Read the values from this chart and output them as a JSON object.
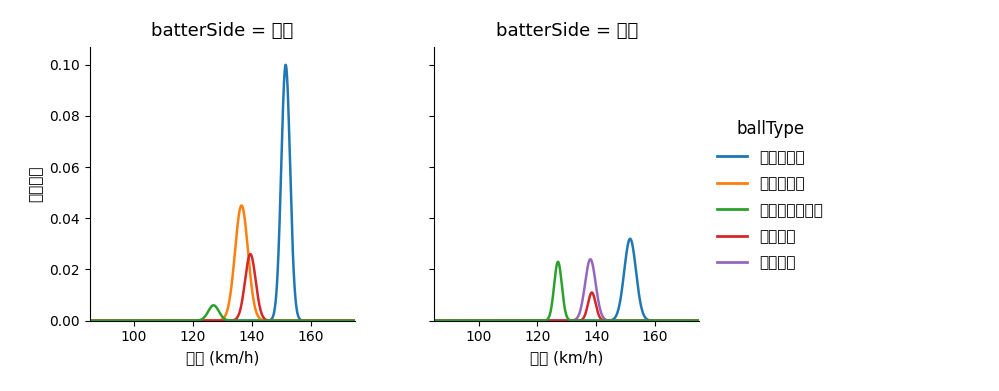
{
  "title_right": "batterSide = 右打",
  "title_left": "batterSide = 左打",
  "ylabel": "確率密度",
  "xlabel": "球速 (km/h)",
  "legend_title": "ballType",
  "legend_labels": [
    "ストレート",
    "スライダー",
    "ナックルカーブ",
    "フォーク",
    "シンカー"
  ],
  "colors": [
    "#1f77b4",
    "#ff7f0e",
    "#2ca02c",
    "#d62728",
    "#9467bd"
  ],
  "xlim": [
    85,
    175
  ],
  "ylim": [
    0.0,
    0.107
  ],
  "yticks": [
    0.0,
    0.02,
    0.04,
    0.06,
    0.08,
    0.1
  ],
  "xticks": [
    100,
    120,
    140,
    160
  ],
  "right_curves": [
    {
      "mean": 151.5,
      "std": 1.5,
      "peak": 0.1,
      "color_idx": 0
    },
    {
      "mean": 136.5,
      "std": 2.2,
      "peak": 0.045,
      "color_idx": 1
    },
    {
      "mean": 139.5,
      "std": 1.8,
      "peak": 0.026,
      "color_idx": 3
    },
    {
      "mean": 127.0,
      "std": 1.8,
      "peak": 0.006,
      "color_idx": 2
    }
  ],
  "left_curves": [
    {
      "mean": 151.5,
      "std": 2.0,
      "peak": 0.032,
      "color_idx": 0
    },
    {
      "mean": 138.0,
      "std": 1.8,
      "peak": 0.024,
      "color_idx": 4
    },
    {
      "mean": 138.5,
      "std": 1.3,
      "peak": 0.011,
      "color_idx": 3
    },
    {
      "mean": 127.0,
      "std": 1.3,
      "peak": 0.023,
      "color_idx": 2
    }
  ]
}
